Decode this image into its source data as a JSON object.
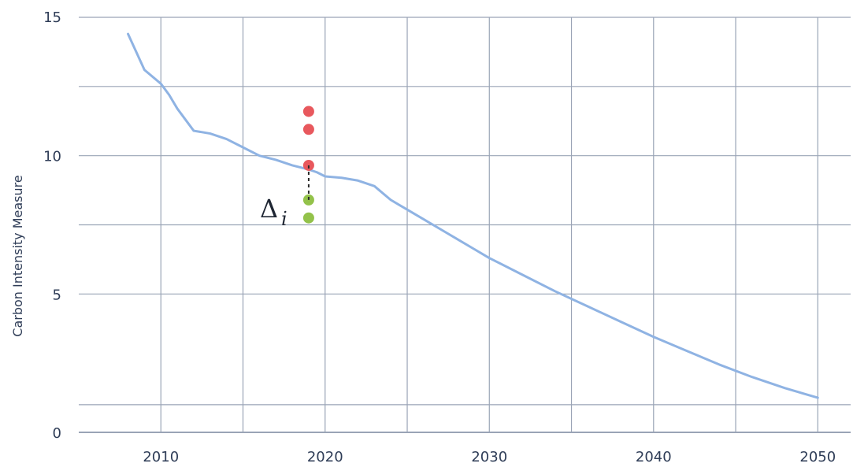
{
  "chart_data": {
    "type": "line",
    "title": "",
    "xlabel": "",
    "ylabel": "Carbon Intensity Measure",
    "xlim": [
      2005,
      2052
    ],
    "ylim": [
      0,
      15
    ],
    "grid": true,
    "colors": {
      "line": "#8fb3e3",
      "grid": "#9aa4b6",
      "text": "#2f3d57",
      "red_points": "#e8585d",
      "green_points": "#93c24a"
    },
    "x_ticks": [
      {
        "value": 2010,
        "label": "2010"
      },
      {
        "value": 2020,
        "label": "2020"
      },
      {
        "value": 2030,
        "label": "2030"
      },
      {
        "value": 2040,
        "label": "2040"
      },
      {
        "value": 2050,
        "label": "2050"
      }
    ],
    "y_ticks": [
      {
        "value": 0,
        "label": "0"
      },
      {
        "value": 5,
        "label": "5"
      },
      {
        "value": 10,
        "label": "10"
      },
      {
        "value": 15,
        "label": "15"
      }
    ],
    "x_gridlines": [
      2010,
      2015,
      2020,
      2025,
      2030,
      2035,
      2040,
      2045,
      2050
    ],
    "y_gridlines": [
      1,
      5,
      7.5,
      10,
      12.5,
      15
    ],
    "series": [
      {
        "x": [
          2008,
          2009,
          2010,
          2010.5,
          2011,
          2012,
          2013,
          2014,
          2015,
          2016,
          2017,
          2018,
          2019,
          2019.5,
          2020,
          2021,
          2022,
          2023,
          2024,
          2025,
          2026,
          2027,
          2028,
          2029,
          2030,
          2032,
          2034,
          2036,
          2038,
          2040,
          2042,
          2044,
          2046,
          2048,
          2050
        ],
        "values": [
          14.4,
          13.1,
          12.6,
          12.2,
          11.7,
          10.9,
          10.8,
          10.6,
          10.3,
          10.0,
          9.85,
          9.65,
          9.5,
          9.4,
          9.25,
          9.2,
          9.1,
          8.9,
          8.4,
          8.05,
          7.7,
          7.35,
          7.0,
          6.65,
          6.3,
          5.7,
          5.1,
          4.55,
          4.0,
          3.45,
          2.95,
          2.45,
          2.0,
          1.6,
          1.25
        ]
      }
    ],
    "points": [
      {
        "x": 2019,
        "y": 11.6,
        "group": "red"
      },
      {
        "x": 2019,
        "y": 10.95,
        "group": "red"
      },
      {
        "x": 2019,
        "y": 9.65,
        "group": "red"
      },
      {
        "x": 2019,
        "y": 8.4,
        "group": "green"
      },
      {
        "x": 2019,
        "y": 7.75,
        "group": "green"
      }
    ],
    "annotation": {
      "label": "Δ",
      "subscript": "i",
      "x": 2019,
      "from": 9.65,
      "to": 8.4
    }
  }
}
